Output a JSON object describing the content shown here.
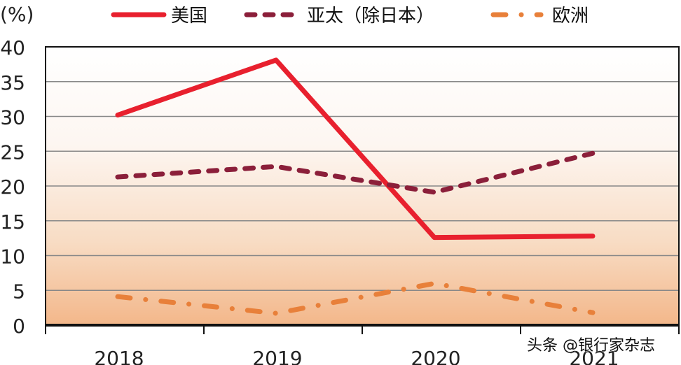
{
  "chart_data": {
    "type": "line",
    "title": "",
    "unit_label": "(%)",
    "xlabel": "",
    "ylabel": "(%)",
    "ylim": [
      0,
      40
    ],
    "yticks": [
      0,
      5,
      10,
      15,
      20,
      25,
      30,
      35,
      40
    ],
    "grid": true,
    "legend_position": "top",
    "categories": [
      "2018",
      "2019",
      "2020",
      "2021"
    ],
    "series": [
      {
        "name": "美国",
        "style": "solid",
        "color": "#e8202e",
        "values": [
          30.2,
          38.1,
          12.6,
          12.8
        ]
      },
      {
        "name": "亚太（除日本）",
        "style": "dashed",
        "color": "#8b1f3a",
        "values": [
          21.3,
          22.8,
          19.1,
          24.7
        ]
      },
      {
        "name": "欧洲",
        "style": "dash-dot",
        "color": "#e8803a",
        "values": [
          4.1,
          1.7,
          6.0,
          1.8
        ]
      }
    ]
  },
  "colors": {
    "background_top": "#ffffff",
    "background_bottom": "#f3b78a",
    "gridline": "#888888",
    "axis": "#111111"
  },
  "watermark": "头条 @银行家杂志"
}
